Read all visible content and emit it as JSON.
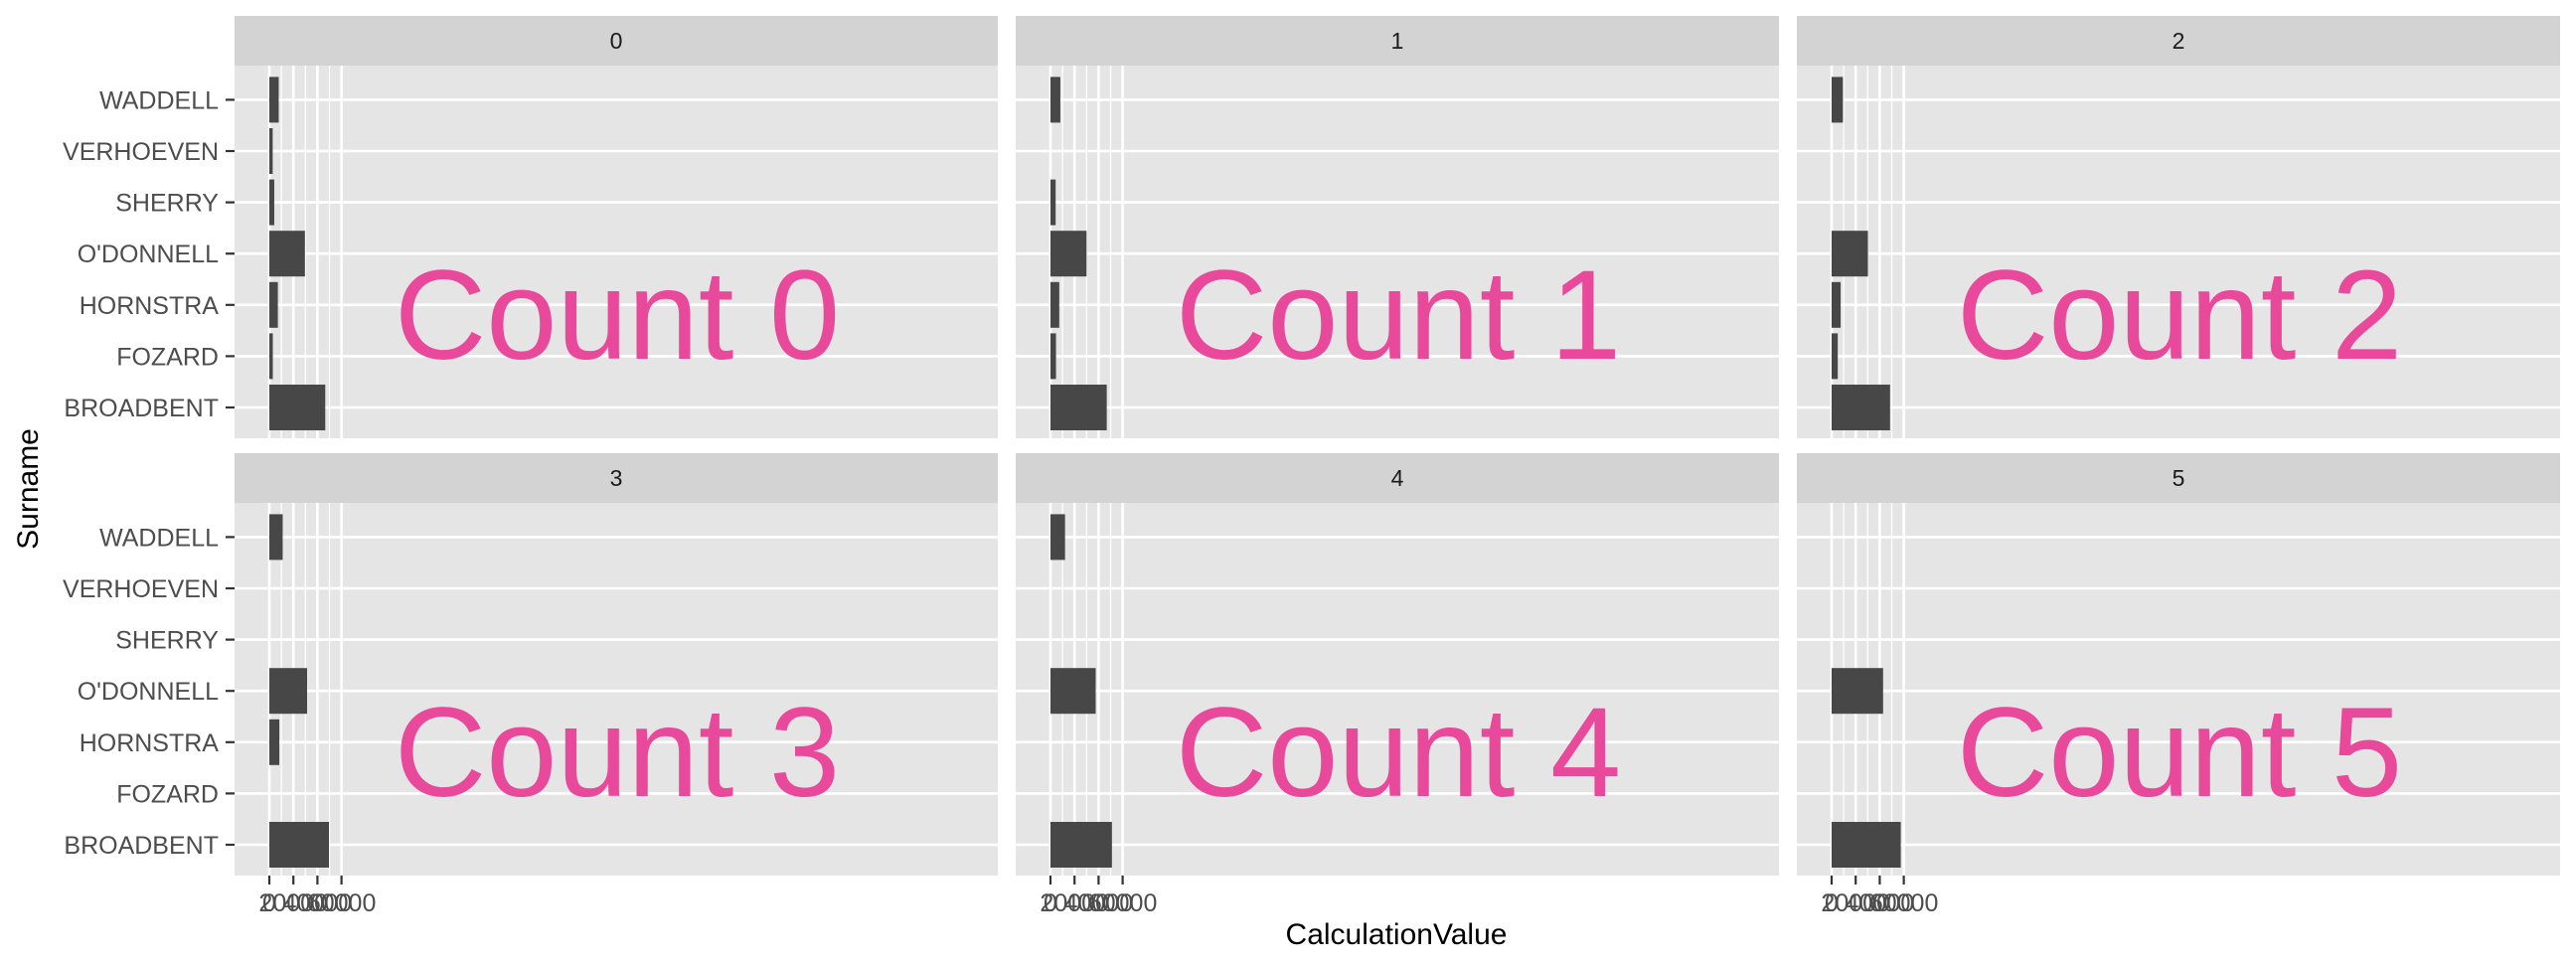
{
  "chart_data": {
    "type": "bar",
    "orientation": "horizontal",
    "facet_labels": [
      "0",
      "1",
      "2",
      "3",
      "4",
      "5"
    ],
    "categories": [
      "BROADBENT",
      "FOZARD",
      "HORNSTRA",
      "O'DONNELL",
      "SHERRY",
      "VERHOEVEN",
      "WADDELL"
    ],
    "xlabel": "CalculationValue",
    "ylabel": "Surname",
    "xlim": [
      0,
      60000
    ],
    "xticks": [
      "0",
      "20000",
      "40000",
      "60000"
    ],
    "grid": true,
    "panels": [
      {
        "facet": "0",
        "overlay_text": "Count 0",
        "values": [
          46500,
          2900,
          7100,
          29600,
          4100,
          2800,
          7800
        ]
      },
      {
        "facet": "1",
        "overlay_text": "Count 1",
        "values": [
          46800,
          4600,
          7300,
          30000,
          4300,
          null,
          8200
        ]
      },
      {
        "facet": "2",
        "overlay_text": "Count 2",
        "values": [
          48600,
          5100,
          7500,
          30200,
          null,
          null,
          9400
        ]
      },
      {
        "facet": "3",
        "overlay_text": "Count 3",
        "values": [
          49600,
          null,
          8300,
          31400,
          null,
          null,
          11100
        ]
      },
      {
        "facet": "4",
        "overlay_text": "Count 4",
        "values": [
          51100,
          null,
          null,
          37600,
          null,
          null,
          12100
        ]
      },
      {
        "facet": "5",
        "overlay_text": "Count 5",
        "values": [
          57500,
          null,
          null,
          42800,
          null,
          null,
          null
        ]
      }
    ],
    "colors": {
      "bar": "#474747",
      "panel_background": "#e5e5e5",
      "strip_background": "#d3d3d3",
      "grid": "#ffffff",
      "overlay_text": "#e8499a"
    }
  }
}
